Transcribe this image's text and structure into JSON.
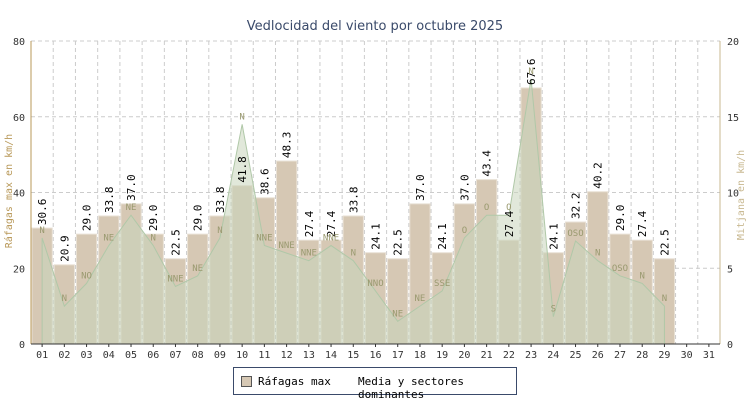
{
  "chart_data": {
    "type": "bar",
    "title": "Vedlocidad del viento por octubre 2025",
    "ylabel_left": "Ráfagas max en km/h",
    "ylabel_right": "Mitjana en km/h",
    "ylim_left": [
      0,
      80
    ],
    "ylim_right": [
      0,
      20
    ],
    "yticks_left": [
      "0",
      "20",
      "40",
      "60",
      "80"
    ],
    "yticks_right": [
      "0",
      "5",
      "10",
      "15",
      "20"
    ],
    "grid": true,
    "legend_position": "bottom-center",
    "categories": [
      "01",
      "02",
      "03",
      "04",
      "05",
      "06",
      "07",
      "08",
      "09",
      "10",
      "11",
      "12",
      "13",
      "14",
      "15",
      "16",
      "17",
      "18",
      "19",
      "20",
      "21",
      "22",
      "23",
      "24",
      "25",
      "26",
      "27",
      "28",
      "29",
      "30",
      "31"
    ],
    "series": [
      {
        "name": "Ráfagas max",
        "type": "bar",
        "axis": "left",
        "values": [
          30.6,
          20.9,
          29.0,
          33.8,
          37.0,
          29.0,
          22.5,
          29.0,
          33.8,
          41.8,
          38.6,
          48.3,
          27.4,
          27.4,
          33.8,
          24.1,
          22.5,
          37.0,
          24.1,
          37.0,
          43.4,
          27.4,
          67.6,
          24.1,
          32.2,
          40.2,
          29.0,
          27.4,
          22.5,
          null,
          null
        ],
        "labels": [
          "30.6",
          "20.9",
          "29.0",
          "33.8",
          "37.0",
          "29.0",
          "22.5",
          "29.0",
          "33.8",
          "41.8",
          "38.6",
          "48.3",
          "27.4",
          "27.4",
          "33.8",
          "24.1",
          "22.5",
          "37.0",
          "24.1",
          "37.0",
          "43.4",
          "27.4",
          "67.6",
          "24.1",
          "32.2",
          "40.2",
          "29.0",
          "27.4",
          "22.5",
          "",
          ""
        ]
      },
      {
        "name": "Media y sectores dominantes",
        "type": "area",
        "axis": "right",
        "values": [
          7.0,
          2.5,
          4.0,
          6.5,
          8.5,
          6.5,
          3.8,
          4.5,
          7.0,
          14.5,
          6.5,
          6.0,
          5.5,
          6.5,
          5.5,
          3.5,
          1.5,
          2.5,
          3.5,
          7.0,
          8.5,
          8.5,
          17.5,
          1.8,
          6.8,
          5.5,
          4.5,
          4.0,
          2.5,
          null,
          null
        ],
        "sectors": [
          "N",
          "N",
          "NO",
          "NE",
          "NE",
          "N",
          "NNE",
          "NE",
          "N",
          "N",
          "NNE",
          "NNE",
          "NNE",
          "NNE",
          "N",
          "NNO",
          "NE",
          "NE",
          "SSE",
          "O",
          "O",
          "O",
          "N",
          "S",
          "OSO",
          "N",
          "OSO",
          "N",
          "N",
          "",
          ""
        ]
      }
    ]
  },
  "legend": {
    "items": [
      "Ráfagas max",
      "Media y sectores dominantes"
    ]
  },
  "colors": {
    "bar_fill": "#d6c8b4",
    "bar_stroke": "#e8e0d4",
    "area_fill": "#c8d6bc",
    "area_stroke": "#b0c8a8",
    "left_axis": "#b89858",
    "right_axis": "#c8b890",
    "title": "#3a4a6a",
    "grid": "#cccccc"
  }
}
